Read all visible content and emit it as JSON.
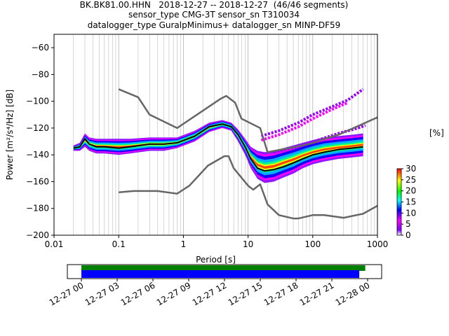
{
  "titles": [
    "BK.BK81.00.HHN   2018-12-27 -- 2018-12-27  (46/46 segments)",
    "sensor_type CMG-3T sensor_sn T310034",
    "datalogger_type GuralpMinimus+ datalogger_sn MINP-DF59"
  ],
  "colorbar": {
    "label": "[%]",
    "ticks": [
      "0",
      "5",
      "10",
      "15",
      "20",
      "25",
      "30"
    ],
    "range": [
      0,
      30
    ],
    "colors": [
      "#ffffff",
      "#8000ff",
      "#ff00ff",
      "#0000ff",
      "#00ffff",
      "#00ff00",
      "#ffff00",
      "#ff0000"
    ]
  },
  "timeline": {
    "ticks": [
      "12-27 00",
      "12-27 03",
      "12-27 06",
      "12-27 09",
      "12-27 12",
      "12-27 15",
      "12-27 18",
      "12-27 21",
      "12-28 00"
    ],
    "bars": [
      {
        "name": "available data",
        "color": "#008000",
        "start_hour": 0,
        "end_hour": 23.8
      },
      {
        "name": "processed segments",
        "color": "#0000ff",
        "start_hour": 0,
        "end_hour": 23.3
      }
    ]
  },
  "chart_data": {
    "type": "heatmap",
    "title": "BK.BK81.00.HHN   2018-12-27 -- 2018-12-27  (46/46 segments)",
    "xlabel": "Period [s]",
    "ylabel": "Power [m²/s⁴/Hz] [dB]",
    "x_scale": "log",
    "xlim": [
      0.01,
      1000
    ],
    "ylim": [
      -200,
      -50
    ],
    "xticks": [
      0.01,
      0.1,
      1,
      10,
      100,
      1000
    ],
    "xtick_labels": [
      "0.01",
      "0.1",
      "1",
      "10",
      "100",
      "1000"
    ],
    "yticks": [
      -200,
      -180,
      -160,
      -140,
      -120,
      -100,
      -80,
      -60
    ],
    "grid": "log-x major and minor",
    "series": [
      {
        "type": "line",
        "color": "#666666",
        "x": [
          0.1,
          0.2,
          0.3,
          0.8,
          3.8,
          4.6,
          6.3,
          7.9,
          15.4,
          20.0,
          69.4,
          103.2,
          150,
          250,
          1000
        ],
        "y": [
          -91,
          -97,
          -110,
          -120,
          -98,
          -96,
          -101,
          -113,
          -120,
          -138,
          -133,
          -131,
          -128,
          -125,
          -112
        ]
      },
      {
        "type": "line",
        "color": "#666666",
        "x": [
          0.1,
          0.17,
          0.4,
          0.8,
          1.24,
          2.4,
          4.3,
          5.0,
          6.0,
          10.0,
          12.0,
          15.4,
          20.0,
          30.0,
          50.0,
          60.0,
          100,
          150,
          300,
          600,
          1000
        ],
        "y": [
          -168,
          -167,
          -167,
          -169,
          -163,
          -148,
          -141,
          -141,
          -150,
          -163,
          -166,
          -162,
          -177,
          -185,
          -187.5,
          -187.5,
          -185,
          -185,
          -187,
          -184,
          -178
        ]
      },
      {
        "type": "line",
        "color": "#000000",
        "x": [
          0.02,
          0.025,
          0.03,
          0.035,
          0.045,
          0.06,
          0.1,
          0.15,
          0.3,
          0.5,
          0.8,
          1.5,
          2.5,
          4.0,
          5.5,
          7.0,
          9.0,
          11.0,
          14.0,
          18.0,
          25.0,
          35.0,
          50.0,
          70.0,
          100,
          150,
          250,
          400,
          600
        ],
        "y": [
          -135,
          -134,
          -128,
          -132,
          -134,
          -134,
          -135,
          -134,
          -132,
          -132,
          -131,
          -126,
          -119,
          -117,
          -119,
          -125,
          -134,
          -143,
          -150,
          -152,
          -151,
          -149,
          -146,
          -143,
          -140,
          -138,
          -136,
          -135,
          -134
        ]
      }
    ],
    "ppsd_band": {
      "x": [
        0.02,
        0.025,
        0.03,
        0.035,
        0.045,
        0.06,
        0.1,
        0.15,
        0.3,
        0.5,
        0.8,
        1.5,
        2.5,
        4.0,
        5.5,
        7.0,
        9.0,
        11.0,
        14.0,
        18.0,
        25.0,
        35.0,
        50.0,
        70.0,
        100,
        150,
        250,
        400,
        600
      ],
      "upper": [
        -133,
        -131,
        -124,
        -127,
        -128,
        -128,
        -128,
        -128,
        -127,
        -127,
        -127,
        -122,
        -116,
        -114,
        -116,
        -121,
        -128,
        -134,
        -137,
        -138,
        -137,
        -135,
        -133,
        -131,
        -129,
        -127,
        -126,
        -125,
        -124
      ],
      "lower": [
        -137,
        -137,
        -134,
        -137,
        -139,
        -139,
        -140,
        -139,
        -137,
        -137,
        -135,
        -130,
        -123,
        -120,
        -122,
        -130,
        -140,
        -150,
        -158,
        -161,
        -160,
        -157,
        -154,
        -150,
        -147,
        -145,
        -143,
        -142,
        -141
      ]
    },
    "ppsd_trails": [
      {
        "color": "#9900ff",
        "x": [
          16,
          30,
          60,
          100,
          200,
          350,
          600
        ],
        "y": [
          -126,
          -122,
          -116,
          -110,
          -104,
          -99,
          -91
        ]
      },
      {
        "color": "#ff00ff",
        "x": [
          16,
          30,
          60,
          100,
          200,
          350
        ],
        "y": [
          -129,
          -125,
          -119,
          -113,
          -106,
          -101
        ]
      },
      {
        "color": "#9900ff",
        "x": [
          25,
          60,
          120,
          250,
          500,
          650
        ],
        "y": [
          -138,
          -134,
          -129,
          -124,
          -120,
          -118
        ]
      }
    ],
    "colorbar_range": [
      0,
      30
    ],
    "colorbar_label": "[%]"
  }
}
